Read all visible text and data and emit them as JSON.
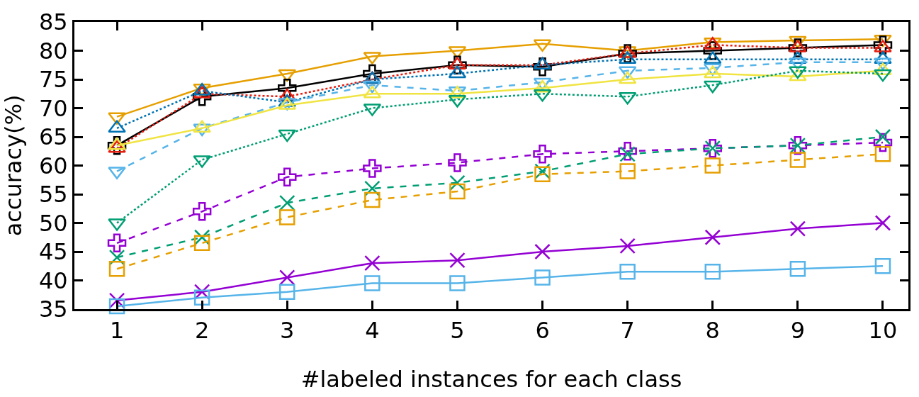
{
  "chart_data": {
    "type": "line",
    "xlabel": "#labeled instances for each class",
    "ylabel": "accuracy(%)",
    "x": [
      1,
      2,
      3,
      4,
      5,
      6,
      7,
      8,
      9,
      10
    ],
    "xlim": [
      0.5,
      10.3
    ],
    "xticks": [
      1,
      2,
      3,
      4,
      5,
      6,
      7,
      8,
      9,
      10
    ],
    "ylim": [
      35,
      85
    ],
    "yticks": [
      35,
      40,
      45,
      50,
      55,
      60,
      65,
      70,
      75,
      80,
      85
    ],
    "grid": false,
    "legend": false,
    "series": [
      {
        "color": "#e69f00",
        "marker": "triangle-down",
        "line_style": "solid",
        "values": [
          68.5,
          73.5,
          76,
          79,
          80,
          81.2,
          80,
          81.5,
          81.8,
          82
        ]
      },
      {
        "color": "#000000",
        "marker": "cross",
        "line_style": "solid",
        "values": [
          63.5,
          72,
          73.5,
          76,
          77.5,
          77.2,
          79.5,
          80,
          80.5,
          81
        ]
      },
      {
        "color": "#e51e10",
        "marker": "triangle",
        "line_style": "dotted",
        "values": [
          63,
          72.5,
          72,
          75,
          77.5,
          77.5,
          79.5,
          81,
          80.5,
          80.5
        ]
      },
      {
        "color": "#0072b2",
        "marker": "triangle",
        "line_style": "dotted",
        "values": [
          66.5,
          73,
          71,
          75,
          76,
          77.5,
          78.5,
          78.5,
          78.5,
          78.5
        ]
      },
      {
        "color": "#56b4e9",
        "marker": "triangle-down",
        "line_style": "dashed",
        "values": [
          59,
          66.5,
          71,
          74,
          73,
          74.5,
          76.5,
          77,
          78,
          78
        ]
      },
      {
        "color": "#f0e442",
        "marker": "triangle",
        "line_style": "solid",
        "values": [
          63.5,
          66.5,
          70.5,
          72.5,
          72.5,
          73.5,
          75,
          76,
          75.5,
          76.5
        ]
      },
      {
        "color": "#009e73",
        "marker": "triangle-down",
        "line_style": "dotted",
        "values": [
          50,
          61,
          65.5,
          70,
          71.5,
          72.5,
          72,
          74,
          76.5,
          76
        ]
      },
      {
        "color": "#9400d3",
        "marker": "cross",
        "line_style": "dashed",
        "values": [
          46.5,
          52,
          58,
          59.5,
          60.5,
          62,
          62.5,
          63,
          63.5,
          64
        ]
      },
      {
        "color": "#009e73",
        "marker": "x",
        "line_style": "dashed",
        "values": [
          44,
          47.5,
          53.5,
          56,
          57,
          59,
          62,
          63,
          63.5,
          65
        ]
      },
      {
        "color": "#e69f00",
        "marker": "square",
        "line_style": "dashed",
        "values": [
          42,
          46.5,
          51,
          54,
          55.5,
          58.5,
          59,
          60,
          61,
          62
        ]
      },
      {
        "color": "#9400d3",
        "marker": "x",
        "line_style": "solid",
        "values": [
          36.5,
          38,
          40.5,
          43,
          43.5,
          45,
          46,
          47.5,
          49,
          50
        ]
      },
      {
        "color": "#56b4e9",
        "marker": "square",
        "line_style": "solid",
        "values": [
          35.5,
          37,
          38,
          39.5,
          39.5,
          40.5,
          41.5,
          41.5,
          42,
          42.5
        ]
      }
    ]
  }
}
